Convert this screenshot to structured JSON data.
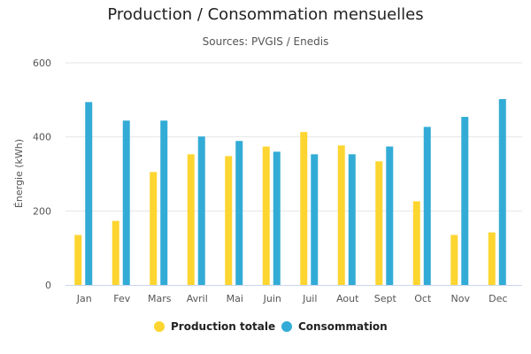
{
  "chart_data": {
    "type": "bar",
    "title": "Production / Consommation mensuelles",
    "subtitle": "Sources: PVGIS / Enedis",
    "ylabel": "Énergie (kWh)",
    "xlabel": "",
    "ylim": [
      0,
      600
    ],
    "yticks": [
      0,
      200,
      400,
      600
    ],
    "grid": true,
    "legend": "bottom",
    "categories": [
      "Jan",
      "Fev",
      "Mars",
      "Avril",
      "Mai",
      "Juin",
      "Juil",
      "Aout",
      "Sept",
      "Oct",
      "Nov",
      "Dec"
    ],
    "series": [
      {
        "name": "Production totale",
        "color": "#fdd530",
        "values": [
          135,
          173,
          305,
          353,
          348,
          374,
          413,
          377,
          334,
          226,
          135,
          142
        ]
      },
      {
        "name": "Consommation",
        "color": "#32acd6",
        "values": [
          494,
          444,
          444,
          401,
          389,
          360,
          353,
          353,
          374,
          427,
          454,
          502
        ]
      }
    ]
  }
}
